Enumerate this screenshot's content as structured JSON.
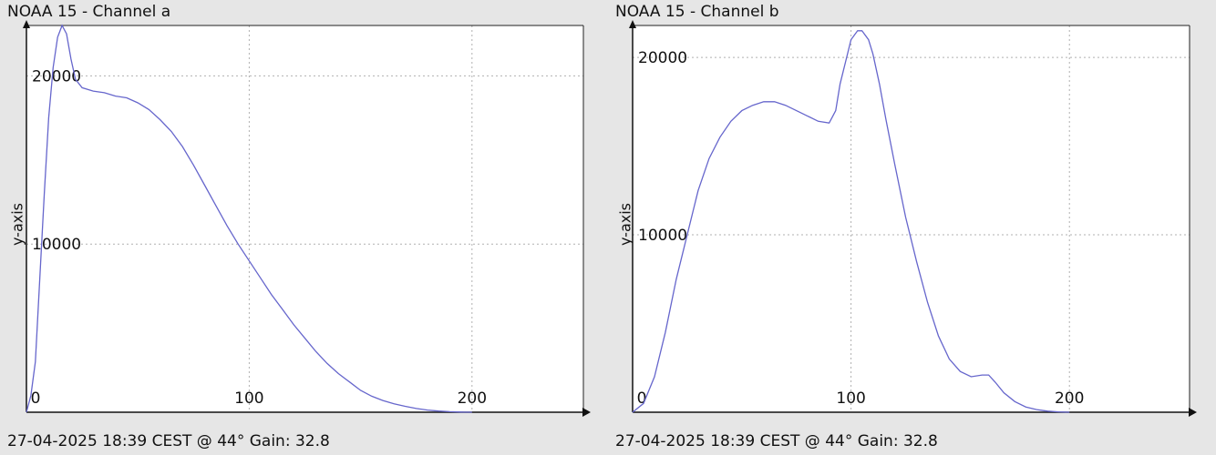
{
  "chart_data": [
    {
      "type": "line",
      "title": "NOAA 15 - Channel a",
      "footer": "27-04-2025 18:39 CEST @ 44° Gain: 32.8",
      "xlabel": "",
      "ylabel": "y-axis",
      "xlim": [
        0,
        250
      ],
      "ylim": [
        0,
        23000
      ],
      "xticks": [
        "0",
        "100",
        "200"
      ],
      "yticks": [
        "10000",
        "20000"
      ],
      "xtick_values": [
        0,
        100,
        200
      ],
      "ytick_values": [
        10000,
        20000
      ],
      "grid": true,
      "line_color": "#6666cc",
      "series": [
        {
          "x": [
            0,
            2,
            4,
            6,
            8,
            10,
            12,
            14,
            16,
            18,
            20,
            22,
            25,
            30,
            35,
            40,
            45,
            50,
            55,
            60,
            65,
            70,
            75,
            80,
            85,
            90,
            95,
            100,
            105,
            110,
            115,
            120,
            125,
            130,
            135,
            140,
            145,
            150,
            155,
            160,
            165,
            170,
            175,
            180,
            185,
            190,
            195,
            200
          ],
          "y": [
            0,
            1000,
            3000,
            8000,
            13000,
            17500,
            20500,
            22300,
            23000,
            22500,
            21000,
            19800,
            19300,
            19100,
            19000,
            18800,
            18700,
            18400,
            18000,
            17400,
            16700,
            15800,
            14700,
            13500,
            12300,
            11100,
            10000,
            9000,
            8000,
            7000,
            6100,
            5200,
            4400,
            3600,
            2900,
            2300,
            1800,
            1300,
            950,
            700,
            500,
            350,
            220,
            130,
            70,
            30,
            10,
            0
          ]
        }
      ]
    },
    {
      "type": "line",
      "title": "NOAA 15 - Channel b",
      "footer": "27-04-2025 18:39 CEST @ 44° Gain: 32.8",
      "xlabel": "",
      "ylabel": "y-axis",
      "xlim": [
        0,
        255
      ],
      "ylim": [
        0,
        21800
      ],
      "xticks": [
        "0",
        "100",
        "200"
      ],
      "yticks": [
        "10000",
        "20000"
      ],
      "xtick_values": [
        0,
        100,
        200
      ],
      "ytick_values": [
        10000,
        20000
      ],
      "grid": true,
      "line_color": "#6666cc",
      "series": [
        {
          "x": [
            0,
            5,
            10,
            15,
            20,
            25,
            30,
            35,
            40,
            45,
            50,
            55,
            60,
            65,
            70,
            75,
            80,
            85,
            90,
            93,
            95,
            98,
            100,
            103,
            105,
            108,
            110,
            113,
            116,
            120,
            125,
            130,
            135,
            140,
            145,
            150,
            155,
            160,
            163,
            166,
            170,
            175,
            180,
            185,
            190,
            195,
            200
          ],
          "y": [
            0,
            500,
            2000,
            4500,
            7500,
            10000,
            12500,
            14300,
            15500,
            16400,
            17000,
            17300,
            17500,
            17500,
            17300,
            17000,
            16700,
            16400,
            16300,
            17000,
            18500,
            20000,
            21000,
            21500,
            21500,
            21000,
            20200,
            18500,
            16500,
            14000,
            11000,
            8500,
            6200,
            4300,
            3000,
            2300,
            2000,
            2100,
            2100,
            1700,
            1100,
            600,
            300,
            150,
            60,
            20,
            0
          ]
        }
      ]
    }
  ]
}
